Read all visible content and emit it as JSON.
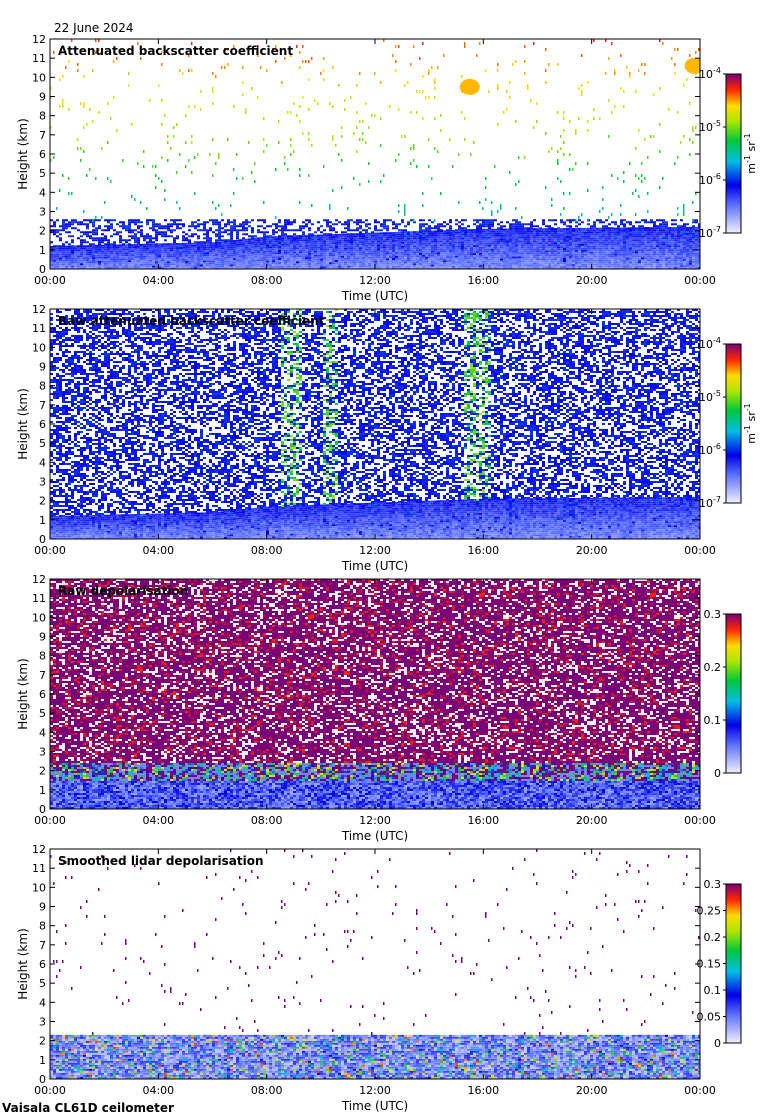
{
  "header": {
    "date": "22 June 2024"
  },
  "footer": {
    "instrument": "Vaisala CL61D ceilometer"
  },
  "colors": {
    "grid": "#000000",
    "background": "#ffffff"
  },
  "chart_data": [
    {
      "type": "heatmap",
      "title": "Attenuated backscatter coefficient",
      "xlabel": "Time (UTC)",
      "ylabel": "Height (km)",
      "xticks": [
        "00:00",
        "04:00",
        "08:00",
        "12:00",
        "16:00",
        "20:00",
        "00:00"
      ],
      "xlim_hours": [
        0,
        24
      ],
      "ylim": [
        0,
        12
      ],
      "yticks": [
        0,
        1,
        2,
        3,
        4,
        5,
        6,
        7,
        8,
        9,
        10,
        11,
        12
      ],
      "colorbar": {
        "scale": "log",
        "range": [
          1e-07,
          0.0001
        ],
        "tick_bases": [
          "10",
          "10",
          "10",
          "10"
        ],
        "tick_exps": [
          "-7",
          "-6",
          "-5",
          "-4"
        ],
        "tick_values": [
          1e-07,
          1e-06,
          1e-05,
          0.0001
        ],
        "unit_main": "m",
        "unit_parts": [
          "-1",
          " sr",
          "-1"
        ]
      },
      "features": {
        "boundary_layer_top_km": [
          [
            0,
            1.2
          ],
          [
            6,
            1.4
          ],
          [
            8,
            1.7
          ],
          [
            12,
            1.9
          ],
          [
            16,
            2.1
          ],
          [
            24,
            2.2
          ]
        ],
        "noise_top_km": 2.6,
        "sparse_noise": true,
        "cirrus": [
          {
            "t_hours": 15.5,
            "h_km": 9.5
          },
          {
            "t_hours": 23.8,
            "h_km": 10.6
          }
        ]
      }
    },
    {
      "type": "heatmap",
      "title": "Raw attenuated backscatter coefficient",
      "xlabel": "Time (UTC)",
      "ylabel": "Height (km)",
      "xticks": [
        "00:00",
        "04:00",
        "08:00",
        "12:00",
        "16:00",
        "20:00",
        "00:00"
      ],
      "xlim_hours": [
        0,
        24
      ],
      "ylim": [
        0,
        12
      ],
      "yticks": [
        0,
        1,
        2,
        3,
        4,
        5,
        6,
        7,
        8,
        9,
        10,
        11,
        12
      ],
      "colorbar": {
        "scale": "log",
        "range": [
          1e-07,
          0.0001
        ],
        "tick_bases": [
          "10",
          "10",
          "10",
          "10"
        ],
        "tick_exps": [
          "-7",
          "-6",
          "-5",
          "-4"
        ],
        "tick_values": [
          1e-07,
          1e-06,
          1e-05,
          0.0001
        ],
        "unit_main": "m",
        "unit_parts": [
          "-1",
          " sr",
          "-1"
        ]
      },
      "features": {
        "boundary_layer_top_km": [
          [
            0,
            1.2
          ],
          [
            6,
            1.4
          ],
          [
            8,
            1.7
          ],
          [
            12,
            1.9
          ],
          [
            16,
            2.1
          ],
          [
            24,
            2.2
          ]
        ],
        "dense_noise": true,
        "bright_columns_hours": [
          [
            8.5,
            9.2
          ],
          [
            10.0,
            10.6
          ],
          [
            15.2,
            16.2
          ]
        ]
      }
    },
    {
      "type": "heatmap",
      "title": "Raw depolarisation",
      "xlabel": "Time (UTC)",
      "ylabel": "Height (km)",
      "xticks": [
        "00:00",
        "04:00",
        "08:00",
        "12:00",
        "16:00",
        "20:00",
        "00:00"
      ],
      "xlim_hours": [
        0,
        24
      ],
      "ylim": [
        0,
        12
      ],
      "yticks": [
        0,
        1,
        2,
        3,
        4,
        5,
        6,
        7,
        8,
        9,
        10,
        11,
        12
      ],
      "colorbar": {
        "scale": "linear",
        "range": [
          0,
          0.3
        ],
        "tick_labels": [
          "0",
          "0.1",
          "0.2",
          "0.3"
        ],
        "tick_values": [
          0,
          0.1,
          0.2,
          0.3
        ]
      },
      "features": {
        "saturated_noise_above_km": 2.5
      }
    },
    {
      "type": "heatmap",
      "title": "Smoothed lidar depolarisation",
      "xlabel": "Time (UTC)",
      "ylabel": "Height (km)",
      "xticks": [
        "00:00",
        "04:00",
        "08:00",
        "12:00",
        "16:00",
        "20:00",
        "00:00"
      ],
      "xlim_hours": [
        0,
        24
      ],
      "ylim": [
        0,
        12
      ],
      "yticks": [
        0,
        1,
        2,
        3,
        4,
        5,
        6,
        7,
        8,
        9,
        10,
        11,
        12
      ],
      "colorbar": {
        "scale": "linear",
        "range": [
          0,
          0.3
        ],
        "tick_labels": [
          "0",
          "0.05",
          "0.1",
          "0.15",
          "0.2",
          "0.25",
          "0.3"
        ],
        "tick_values": [
          0,
          0.05,
          0.1,
          0.15,
          0.2,
          0.25,
          0.3
        ]
      },
      "features": {
        "boundary_layer_top_km": 2.3,
        "sparse_specks": true
      }
    }
  ]
}
